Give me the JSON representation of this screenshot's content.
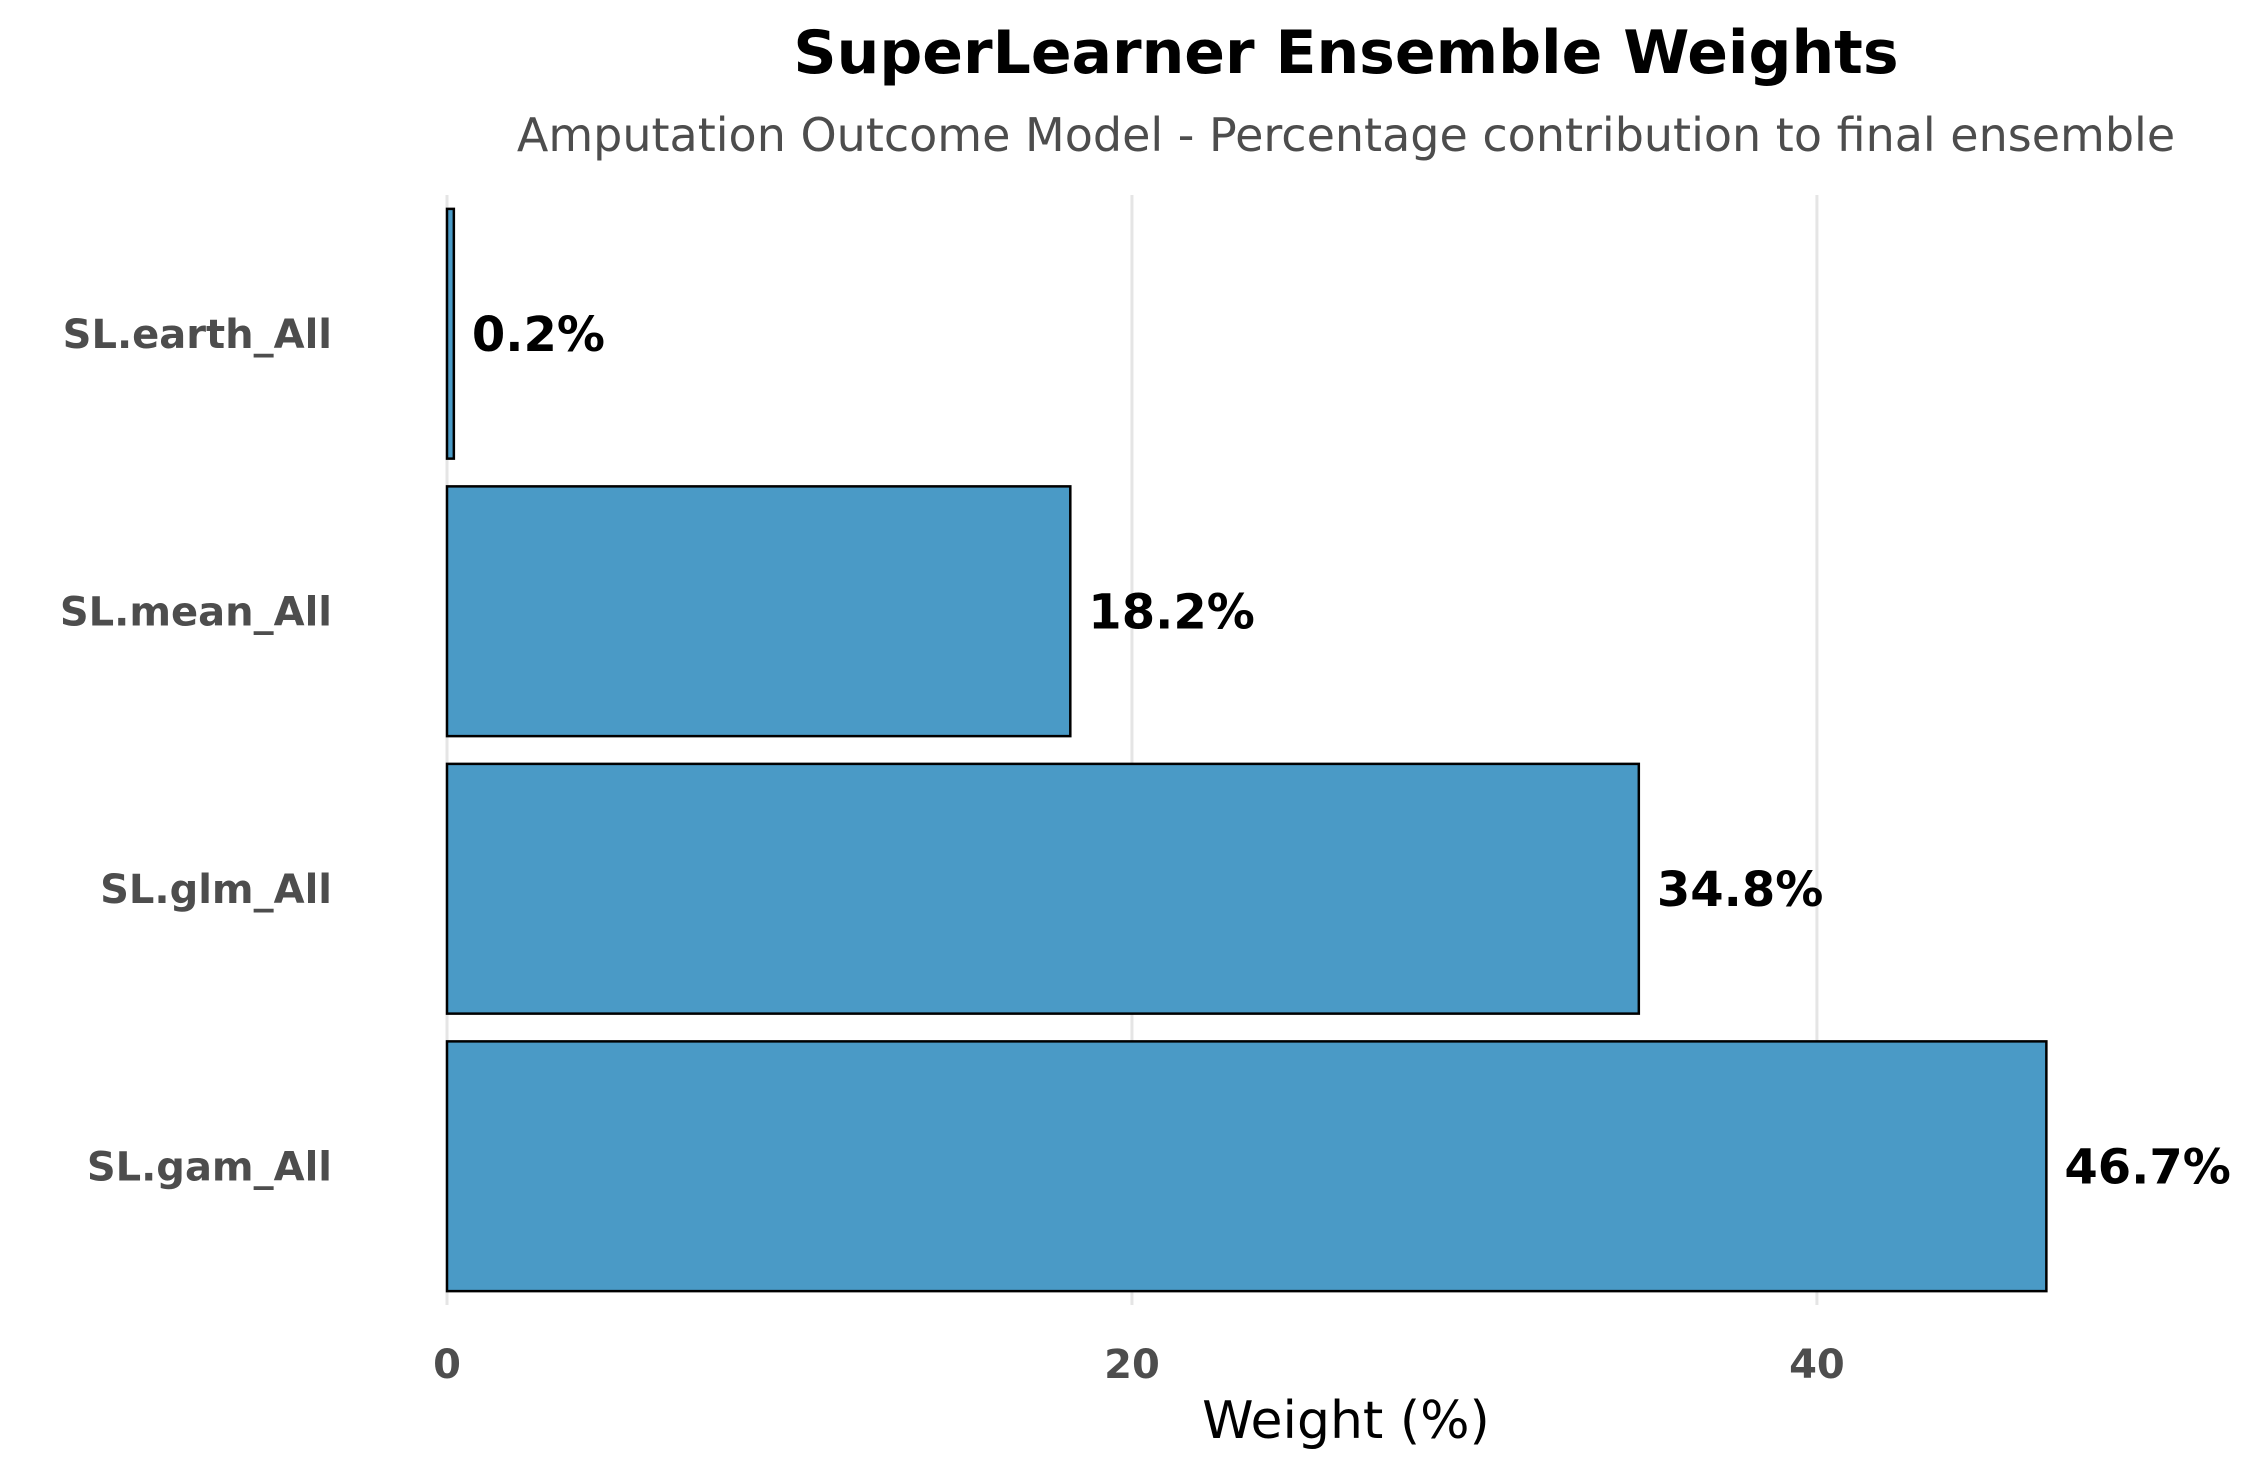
{
  "chart_data": {
    "type": "bar",
    "orientation": "horizontal",
    "title": "SuperLearner Ensemble Weights",
    "subtitle": "Amputation Outcome Model - Percentage contribution to final ensemble",
    "xlabel": "Weight (%)",
    "ylabel": "",
    "categories": [
      "SL.earth_All",
      "SL.mean_All",
      "SL.glm_All",
      "SL.gam_All"
    ],
    "values": [
      0.2,
      18.2,
      34.8,
      46.7
    ],
    "value_labels": [
      "0.2%",
      "18.2%",
      "34.8%",
      "46.7%"
    ],
    "xlim": [
      0,
      52.5
    ],
    "xticks": [
      0,
      20,
      40
    ],
    "xtick_labels": [
      "0",
      "20",
      "40"
    ],
    "grid": "vertical",
    "legend": "none",
    "colors": {
      "bar_fill": "#4a9ac6",
      "bar_stroke": "#000000",
      "grid": "#e5e5e5"
    }
  }
}
